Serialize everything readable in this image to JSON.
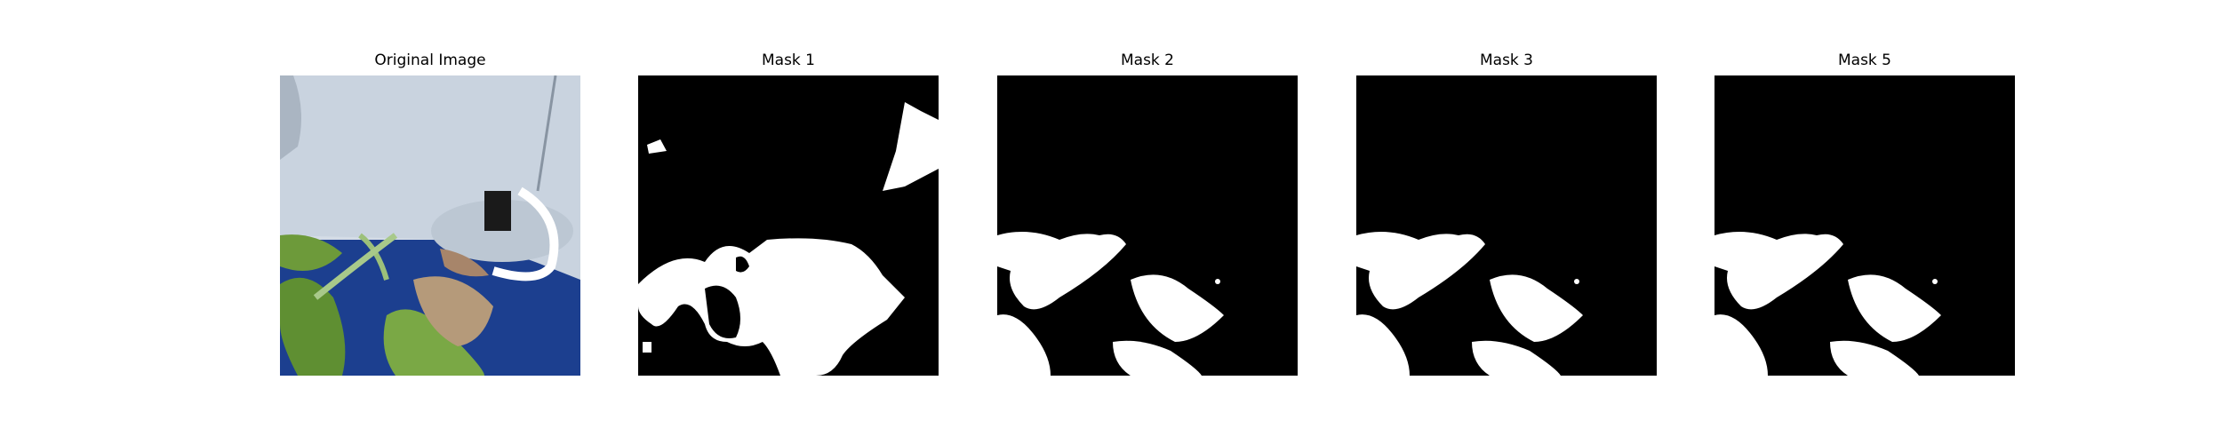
{
  "panels": [
    {
      "title": "Original Image",
      "kind": "photo"
    },
    {
      "title": "Mask 1",
      "kind": "mask"
    },
    {
      "title": "Mask 2",
      "kind": "mask"
    },
    {
      "title": "Mask 3",
      "kind": "mask"
    },
    {
      "title": "Mask 5",
      "kind": "mask"
    }
  ],
  "colors": {
    "mask_background": "#000000",
    "mask_foreground": "#ffffff",
    "sky_blue": "#1c3f8f",
    "pot_gray": "#c9d3df",
    "leaf_green": "#6d9a3a",
    "dry_leaf": "#b59a7a"
  }
}
